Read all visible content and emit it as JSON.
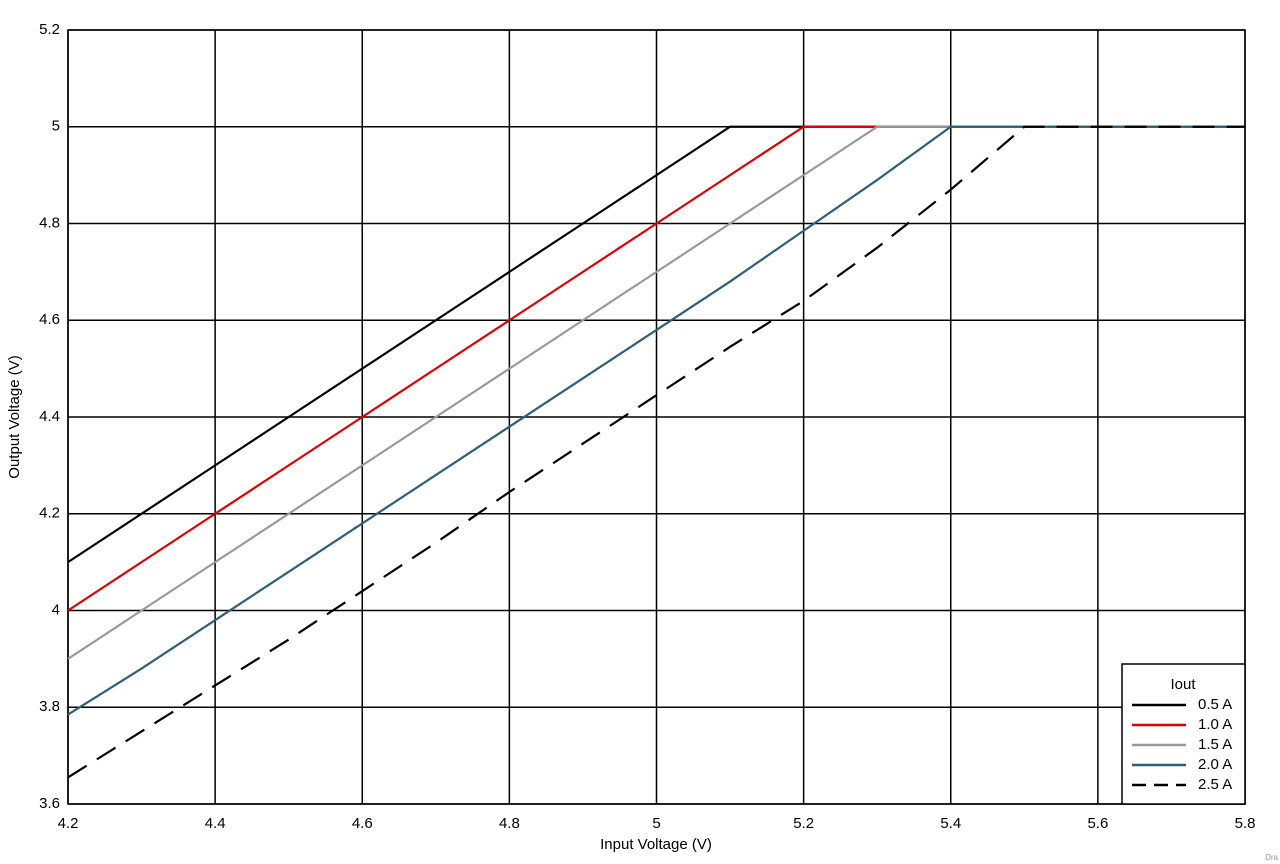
{
  "chart_data": {
    "type": "line",
    "xlabel": "Input Voltage (V)",
    "ylabel": "Output Voltage (V)",
    "x": [
      4.2,
      4.3,
      4.4,
      4.5,
      4.6,
      4.7,
      4.8,
      4.9,
      5.0,
      5.1,
      5.2,
      5.3,
      5.4,
      5.5,
      5.6,
      5.7,
      5.8
    ],
    "series": [
      {
        "name": "0.5 A",
        "color": "#000000",
        "linestyle": "solid",
        "values": [
          4.1,
          4.2,
          4.3,
          4.4,
          4.5,
          4.6,
          4.7,
          4.8,
          4.9,
          5.0,
          5.0,
          5.0,
          5.0,
          5.0,
          5.0,
          5.0,
          5.0
        ]
      },
      {
        "name": "1.0 A",
        "color": "#e00000",
        "linestyle": "solid",
        "values": [
          4.0,
          4.1,
          4.2,
          4.3,
          4.4,
          4.5,
          4.6,
          4.7,
          4.8,
          4.9,
          5.0,
          5.0,
          5.0,
          5.0,
          5.0,
          5.0,
          5.0
        ]
      },
      {
        "name": "1.5 A",
        "color": "#999999",
        "linestyle": "solid",
        "values": [
          3.9,
          4.0,
          4.1,
          4.2,
          4.3,
          4.4,
          4.5,
          4.6,
          4.7,
          4.8,
          4.9,
          5.0,
          5.0,
          5.0,
          5.0,
          5.0,
          5.0
        ]
      },
      {
        "name": "2.0 A",
        "color": "#2f5f78",
        "linestyle": "solid",
        "values": [
          3.785,
          3.88,
          3.98,
          4.08,
          4.18,
          4.28,
          4.38,
          4.48,
          4.58,
          4.68,
          4.785,
          4.89,
          5.0,
          5.0,
          5.0,
          5.0,
          5.0
        ]
      },
      {
        "name": "2.5 A",
        "color": "#000000",
        "linestyle": "dashed",
        "values": [
          3.655,
          3.75,
          3.845,
          3.94,
          4.04,
          4.14,
          4.245,
          4.345,
          4.445,
          4.545,
          4.64,
          4.75,
          4.87,
          5.0,
          5.0,
          5.0,
          5.0
        ]
      }
    ],
    "legend_title": "Iout",
    "legend": "lower right",
    "xlim": [
      4.2,
      5.8
    ],
    "xticks": [
      4.2,
      4.4,
      4.6,
      4.8,
      5,
      5.2,
      5.4,
      5.6,
      5.8
    ],
    "ylim": [
      3.6,
      5.2
    ],
    "yticks": [
      3.6,
      3.8,
      4,
      4.2,
      4.4,
      4.6,
      4.8,
      5,
      5.2
    ],
    "grid": true,
    "footnote": "Dra"
  }
}
